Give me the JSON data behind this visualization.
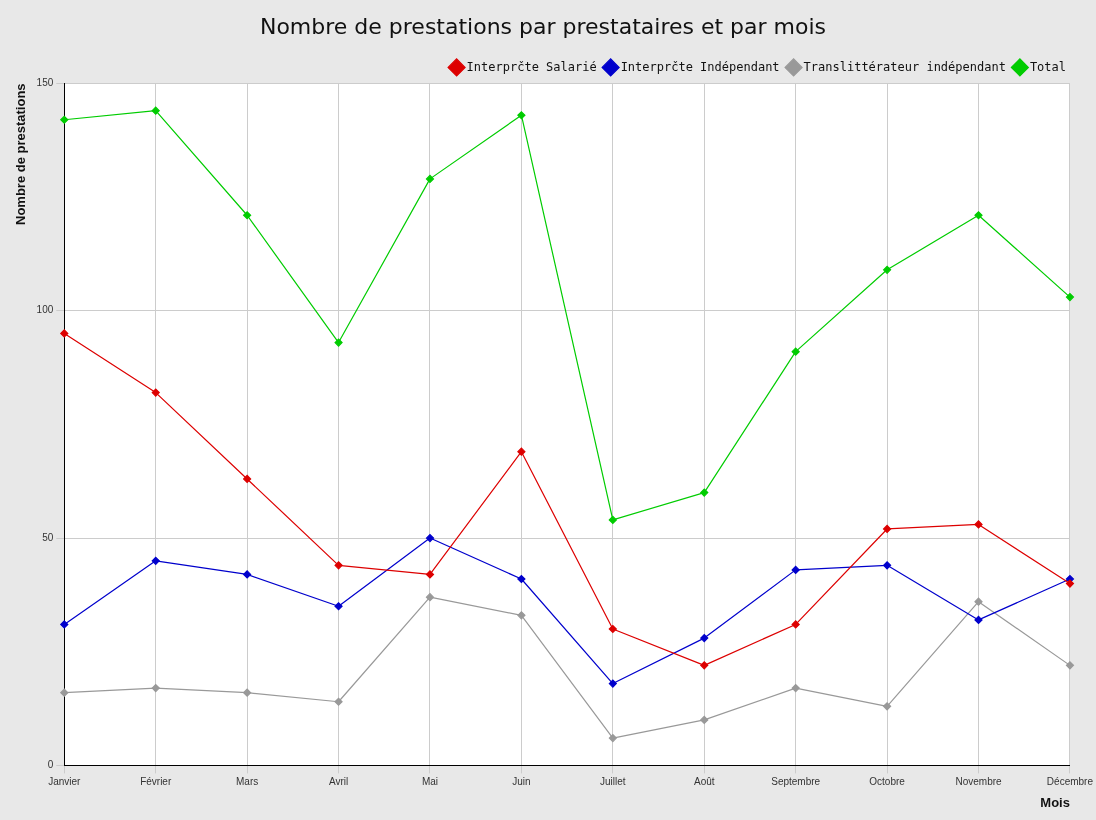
{
  "chart_data": {
    "type": "line",
    "title": "Nombre de prestations par prestataires et par mois",
    "xlabel": "Mois",
    "ylabel": "Nombre de prestations",
    "categories": [
      "Janvier",
      "Février",
      "Mars",
      "Avril",
      "Mai",
      "Juin",
      "Juillet",
      "Août",
      "Septembre",
      "Octobre",
      "Novembre",
      "Décembre"
    ],
    "series": [
      {
        "name": "Interprčte Salarié",
        "color": "#dd0000",
        "values": [
          95,
          82,
          63,
          44,
          42,
          69,
          30,
          22,
          31,
          52,
          53,
          40
        ]
      },
      {
        "name": "Interprčte Indépendant",
        "color": "#0000cc",
        "values": [
          31,
          45,
          42,
          35,
          50,
          41,
          18,
          28,
          43,
          44,
          32,
          41
        ]
      },
      {
        "name": "Translittérateur indépendant",
        "color": "#999999",
        "values": [
          16,
          17,
          16,
          14,
          37,
          33,
          6,
          10,
          17,
          13,
          36,
          22
        ]
      },
      {
        "name": "Total",
        "color": "#00cc00",
        "values": [
          142,
          144,
          121,
          93,
          129,
          143,
          54,
          60,
          91,
          109,
          121,
          103
        ]
      }
    ],
    "ylim": [
      0,
      150
    ],
    "yticks": [
      0,
      50,
      100,
      150
    ],
    "grid": true,
    "legend": "top right",
    "marker": "diamond",
    "line_style": "solid"
  }
}
